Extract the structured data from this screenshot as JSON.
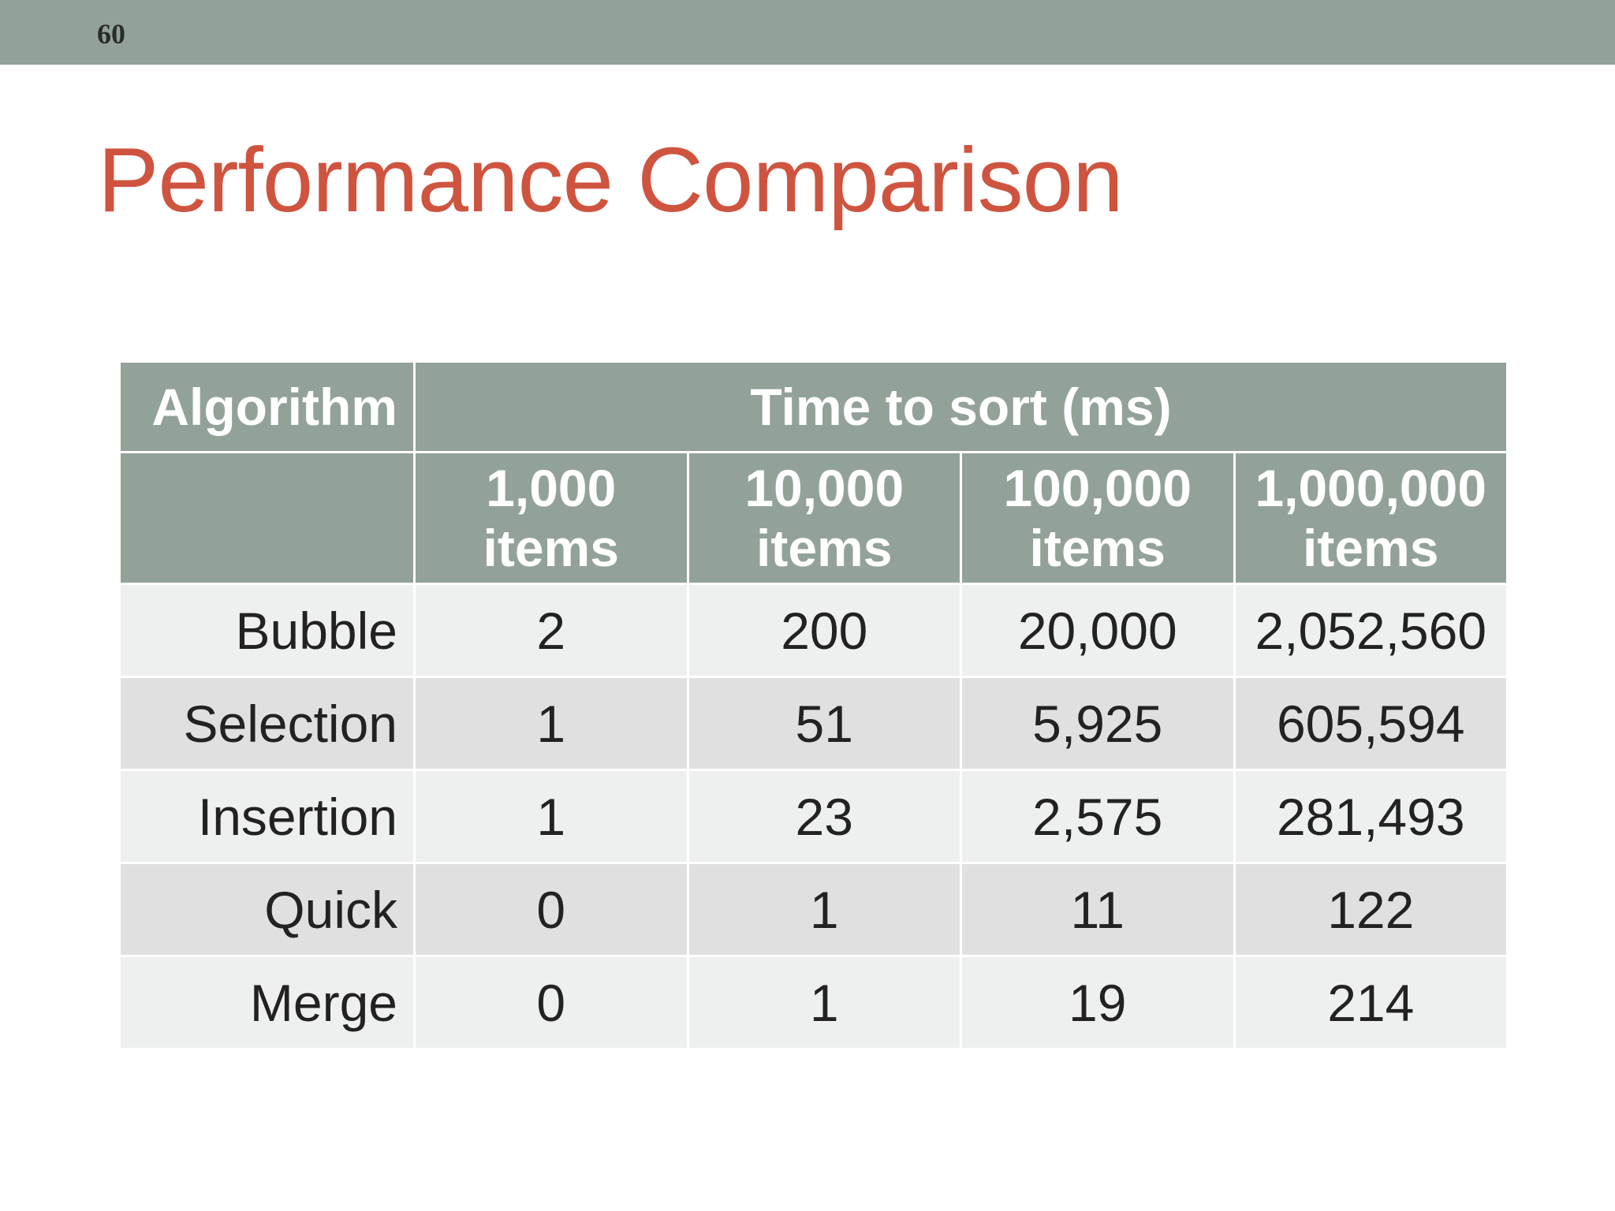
{
  "slide": {
    "number": "60",
    "title": "Performance Comparison"
  },
  "table": {
    "header_algorithm": "Algorithm",
    "header_time": "Time to sort (ms)",
    "size_headers": [
      {
        "line1": "1,000",
        "line2": "items"
      },
      {
        "line1": "10,000",
        "line2": "items"
      },
      {
        "line1": "100,000",
        "line2": "items"
      },
      {
        "line1": "1,000,000",
        "line2": "items"
      }
    ],
    "rows": [
      {
        "algorithm": "Bubble",
        "values": [
          "2",
          "200",
          "20,000",
          "2,052,560"
        ]
      },
      {
        "algorithm": "Selection",
        "values": [
          "1",
          "51",
          "5,925",
          "605,594"
        ]
      },
      {
        "algorithm": "Insertion",
        "values": [
          "1",
          "23",
          "2,575",
          "281,493"
        ]
      },
      {
        "algorithm": "Quick",
        "values": [
          "0",
          "1",
          "11",
          "122"
        ]
      },
      {
        "algorithm": "Merge",
        "values": [
          "0",
          "1",
          "19",
          "214"
        ]
      }
    ]
  },
  "colors": {
    "bar": "#93a299",
    "title": "#cf543f",
    "row_light": "#eef0ef",
    "row_dark": "#dfe0df"
  }
}
